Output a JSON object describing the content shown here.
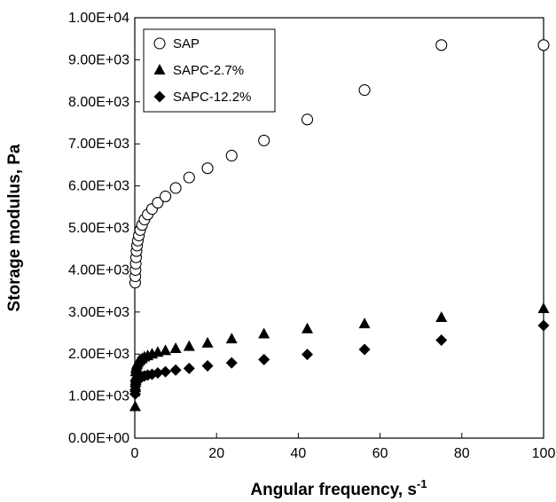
{
  "chart_data": {
    "type": "scatter",
    "title": "",
    "xlabel": "Angular frequency, s",
    "xlabel_superscript": "-1",
    "ylabel": "Storage modulus, Pa",
    "xlim": [
      0,
      100
    ],
    "ylim": [
      0,
      10000
    ],
    "xticks": [
      0,
      20,
      40,
      60,
      80,
      100
    ],
    "xtick_labels": [
      "0",
      "20",
      "40",
      "60",
      "80",
      "100"
    ],
    "yticks": [
      0,
      1000,
      2000,
      3000,
      4000,
      5000,
      6000,
      7000,
      8000,
      9000,
      10000
    ],
    "ytick_labels": [
      "0.00E+00",
      "1.00E+03",
      "2.00E+03",
      "3.00E+03",
      "4.00E+03",
      "5.00E+03",
      "6.00E+03",
      "7.00E+03",
      "8.00E+03",
      "9.00E+03",
      "1.00E+04"
    ],
    "grid": false,
    "legend_position": "top-left",
    "series": [
      {
        "name": "SAP",
        "marker": "circle-open",
        "x": [
          0.1,
          0.13,
          0.18,
          0.24,
          0.32,
          0.42,
          0.56,
          0.75,
          1.0,
          1.33,
          1.78,
          2.37,
          3.16,
          4.22,
          5.62,
          7.5,
          10.0,
          13.3,
          17.8,
          23.7,
          31.6,
          42.2,
          56.2,
          75.0,
          100.0
        ],
        "y": [
          3700,
          3850,
          4000,
          4150,
          4300,
          4450,
          4580,
          4700,
          4820,
          4950,
          5070,
          5200,
          5320,
          5450,
          5600,
          5750,
          5950,
          6200,
          6420,
          6720,
          7080,
          7580,
          8280,
          9350,
          9350
        ]
      },
      {
        "name": "SAPC-2.7%",
        "marker": "triangle-filled",
        "x": [
          0.1,
          0.13,
          0.18,
          0.24,
          0.32,
          0.42,
          0.56,
          0.75,
          1.0,
          1.33,
          1.78,
          2.37,
          3.16,
          4.22,
          5.62,
          7.5,
          10.0,
          13.3,
          17.8,
          23.7,
          31.6,
          42.2,
          56.2,
          75.0,
          100.0
        ],
        "y": [
          750,
          1200,
          1450,
          1580,
          1650,
          1700,
          1750,
          1790,
          1830,
          1860,
          1890,
          1930,
          1960,
          2000,
          2040,
          2080,
          2130,
          2180,
          2260,
          2360,
          2480,
          2600,
          2720,
          2870,
          3080
        ]
      },
      {
        "name": "SAPC-12.2%",
        "marker": "diamond-filled",
        "x": [
          0.1,
          0.13,
          0.18,
          0.24,
          0.32,
          0.42,
          0.56,
          0.75,
          1.0,
          1.33,
          1.78,
          2.37,
          3.16,
          4.22,
          5.62,
          7.5,
          10.0,
          13.3,
          17.8,
          23.7,
          31.6,
          42.2,
          56.2,
          75.0,
          100.0
        ],
        "y": [
          1050,
          1150,
          1230,
          1280,
          1320,
          1350,
          1380,
          1400,
          1420,
          1440,
          1460,
          1480,
          1500,
          1520,
          1550,
          1580,
          1620,
          1660,
          1720,
          1790,
          1870,
          1990,
          2110,
          2330,
          2680
        ]
      }
    ]
  }
}
